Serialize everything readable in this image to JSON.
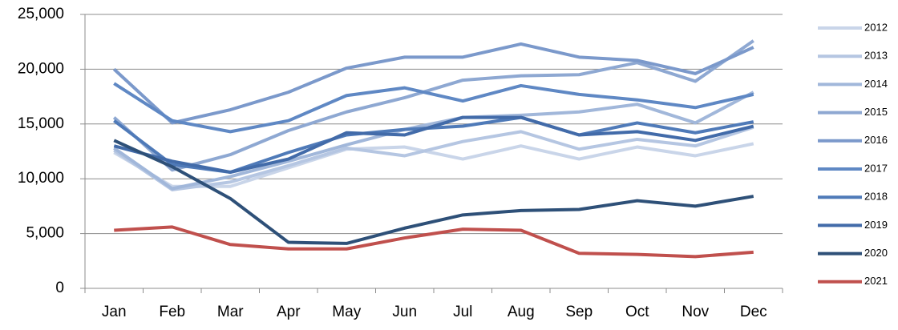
{
  "chart_data": {
    "type": "line",
    "categories": [
      "Jan",
      "Feb",
      "Mar",
      "Apr",
      "May",
      "Jun",
      "Jul",
      "Aug",
      "Sep",
      "Oct",
      "Nov",
      "Dec"
    ],
    "series": [
      {
        "name": "2012",
        "color": "#c9d5e9",
        "values": [
          12400,
          9300,
          9300,
          11000,
          12700,
          12900,
          11800,
          13000,
          11800,
          12900,
          12100,
          13200
        ]
      },
      {
        "name": "2013",
        "color": "#b5c6e2",
        "values": [
          12600,
          9000,
          9700,
          11200,
          12800,
          12100,
          13400,
          14300,
          12700,
          13600,
          13000,
          14700
        ]
      },
      {
        "name": "2014",
        "color": "#a1b7da",
        "values": [
          12800,
          9100,
          10200,
          11600,
          13100,
          14500,
          15600,
          15800,
          16100,
          16800,
          15100,
          17900
        ]
      },
      {
        "name": "2015",
        "color": "#8ea8d2",
        "values": [
          15600,
          10800,
          12200,
          14400,
          16100,
          17400,
          19000,
          19400,
          19500,
          20600,
          18900,
          22600
        ]
      },
      {
        "name": "2016",
        "color": "#7b99cb",
        "values": [
          20000,
          15100,
          16300,
          17900,
          20100,
          21100,
          21100,
          22300,
          21100,
          20800,
          19600,
          22000
        ]
      },
      {
        "name": "2017",
        "color": "#5f88c4",
        "values": [
          18700,
          15300,
          14300,
          15300,
          17600,
          18300,
          17100,
          18500,
          17700,
          17200,
          16500,
          17700
        ]
      },
      {
        "name": "2018",
        "color": "#4f7ab8",
        "values": [
          15300,
          11300,
          10600,
          12400,
          14000,
          14500,
          14800,
          15600,
          14000,
          15100,
          14200,
          15200
        ]
      },
      {
        "name": "2019",
        "color": "#426ba9",
        "values": [
          13000,
          11600,
          10600,
          11800,
          14200,
          14000,
          15600,
          15600,
          14000,
          14300,
          13500,
          14800
        ]
      },
      {
        "name": "2020",
        "color": "#2e5078",
        "values": [
          13500,
          11100,
          8200,
          4200,
          4100,
          5500,
          6700,
          7100,
          7200,
          8000,
          7500,
          8400
        ]
      },
      {
        "name": "2021",
        "color": "#c0504d",
        "values": [
          5300,
          5600,
          4000,
          3600,
          3600,
          4600,
          5400,
          5300,
          3200,
          3100,
          2900,
          3300
        ]
      }
    ],
    "ylim": [
      0,
      25000
    ],
    "yticks": [
      0,
      {
        "value": 5000,
        "label": "5,000"
      },
      {
        "value": 10000,
        "label": "10,000"
      },
      {
        "value": 15000,
        "label": "15,000"
      },
      {
        "value": 20000,
        "label": "20,000"
      },
      {
        "value": 25000,
        "label": "25,000"
      }
    ],
    "grid": true,
    "legend": "right"
  }
}
